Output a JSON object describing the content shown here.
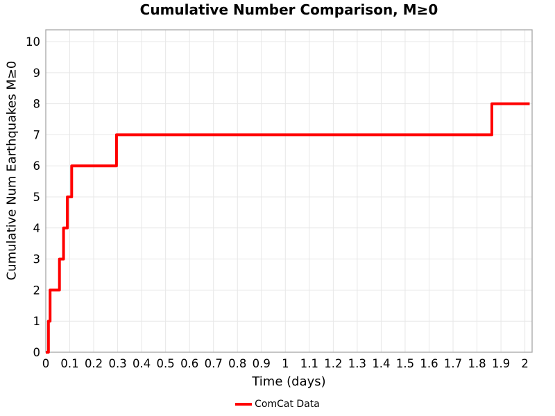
{
  "figure": {
    "background": "#ffffff"
  },
  "chart_data": {
    "type": "line",
    "subtype": "step-post",
    "title": "Cumulative Number Comparison, M≥0",
    "xlabel": "Time (days)",
    "ylabel": "Cumulative Num Earthquakes M≥0",
    "grid": true,
    "legend_position": "bottom-center",
    "xlim": [
      0,
      2.03
    ],
    "ylim": [
      0,
      10.38
    ],
    "xtick_values": [
      0,
      0.1,
      0.2,
      0.3,
      0.4,
      0.5,
      0.6,
      0.7,
      0.8,
      0.9,
      1,
      1.1,
      1.2,
      1.3,
      1.4,
      1.5,
      1.6,
      1.7,
      1.8,
      1.9,
      2
    ],
    "xtick_labels": [
      "0",
      "0.1",
      "0.2",
      "0.3",
      "0.4",
      "0.5",
      "0.6",
      "0.7",
      "0.8",
      "0.9",
      "1",
      "1.1",
      "1.2",
      "1.3",
      "1.4",
      "1.5",
      "1.6",
      "1.7",
      "1.8",
      "1.9",
      "2"
    ],
    "ytick_values": [
      0,
      1,
      2,
      3,
      4,
      5,
      6,
      7,
      8,
      9,
      10
    ],
    "ytick_labels": [
      "0",
      "1",
      "2",
      "3",
      "4",
      "5",
      "6",
      "7",
      "8",
      "9",
      "10"
    ],
    "series": [
      {
        "name": "ComCat Data",
        "color": "#ff0000",
        "line_width": 4,
        "step": "post",
        "points": [
          [
            0,
            0
          ],
          [
            0.011,
            1
          ],
          [
            0.018,
            2
          ],
          [
            0.057,
            3
          ],
          [
            0.074,
            4
          ],
          [
            0.09,
            5
          ],
          [
            0.108,
            6
          ],
          [
            0.295,
            7
          ],
          [
            1.862,
            8
          ],
          [
            2.02,
            8
          ]
        ]
      }
    ],
    "legend": [
      {
        "label": "ComCat Data",
        "color": "#ff0000"
      }
    ],
    "colors": {
      "grid": "#e7e7e7",
      "spine": "#a6a6a6",
      "text": "#000000"
    }
  }
}
